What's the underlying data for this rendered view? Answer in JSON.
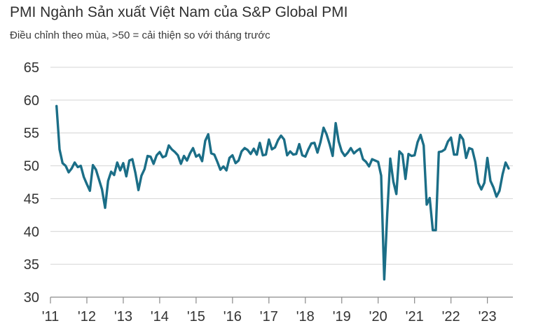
{
  "chart_data": {
    "type": "line",
    "title": "PMI Ngành Sản xuất Việt Nam của S&P Global PMI",
    "subtitle": "Điều chỉnh theo mùa, >50 = cải thiện so với tháng trước",
    "xlabel": "",
    "ylabel": "",
    "ylim": [
      30,
      65
    ],
    "yticks": [
      30,
      35,
      40,
      45,
      50,
      55,
      60,
      65
    ],
    "xticks": [
      "'11",
      "'12",
      "'13",
      "'14",
      "'15",
      "'16",
      "'17",
      "'18",
      "'19",
      "'20",
      "'21",
      "'22",
      "'23"
    ],
    "grid": true,
    "line_color": "#1b6e87",
    "series": [
      {
        "x_start": "2011-03",
        "frequency": "monthly",
        "values": [
          59.1,
          52.5,
          50.4,
          50.0,
          49.0,
          49.6,
          50.5,
          49.8,
          50.0,
          48.3,
          47.2,
          46.2,
          50.1,
          49.4,
          47.9,
          46.4,
          43.6,
          47.7,
          49.1,
          48.6,
          50.5,
          49.3,
          50.4,
          48.4,
          50.8,
          51.0,
          48.9,
          46.3,
          48.5,
          49.5,
          51.5,
          51.4,
          50.3,
          51.6,
          52.1,
          51.3,
          51.5,
          53.1,
          52.5,
          52.1,
          51.6,
          50.3,
          51.5,
          50.8,
          51.9,
          52.7,
          51.4,
          51.7,
          50.7,
          53.8,
          54.8,
          51.9,
          51.7,
          50.6,
          49.4,
          49.9,
          49.3,
          51.2,
          51.6,
          50.4,
          50.8,
          52.2,
          52.7,
          52.4,
          51.8,
          52.6,
          51.7,
          53.5,
          51.6,
          51.7,
          54.0,
          52.5,
          52.8,
          53.9,
          54.6,
          54.0,
          51.6,
          52.2,
          51.7,
          51.8,
          53.3,
          51.6,
          51.4,
          52.5,
          53.4,
          53.5,
          52.0,
          53.6,
          55.8,
          54.8,
          53.3,
          51.5,
          56.5,
          53.7,
          52.2,
          51.5,
          52.0,
          52.7,
          51.9,
          52.3,
          52.6,
          51.0,
          50.6,
          49.9,
          51.0,
          50.8,
          50.6,
          48.5,
          32.7,
          42.7,
          51.1,
          47.6,
          45.7,
          52.2,
          51.7,
          48.0,
          51.8,
          51.5,
          51.6,
          53.6,
          54.7,
          53.1,
          44.1,
          45.1,
          40.2,
          40.2,
          52.1,
          52.2,
          52.5,
          53.7,
          54.3,
          51.7,
          51.7,
          54.7,
          54.0,
          51.2,
          52.7,
          52.5,
          50.6,
          47.4,
          46.4,
          47.4,
          51.2,
          47.7,
          46.7,
          45.3,
          46.2,
          48.7,
          50.5,
          49.6
        ]
      }
    ]
  }
}
